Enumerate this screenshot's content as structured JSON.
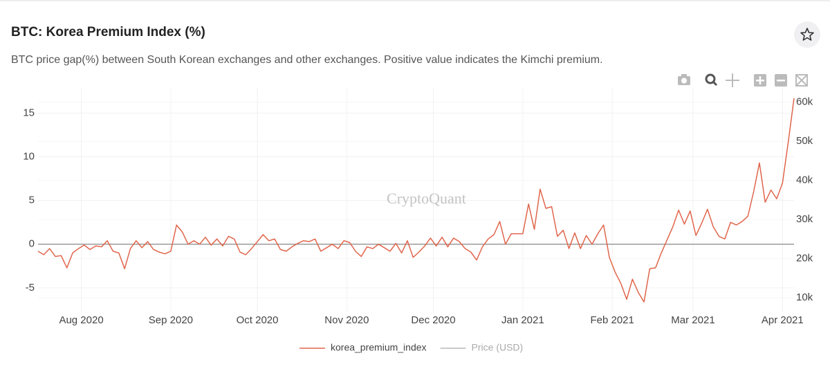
{
  "title": "BTC: Korea Premium Index (%)",
  "subtitle": "BTC price gap(%) between South Korean exchanges and other exchanges. Positive value indicates the Kimchi premium.",
  "chart_data": {
    "type": "line",
    "watermark": "CryptoQuant",
    "xlim": [
      0,
      131
    ],
    "xticks": [
      {
        "value": 7.5,
        "label": "Aug 2020"
      },
      {
        "value": 23,
        "label": "Sep 2020"
      },
      {
        "value": 38,
        "label": "Oct 2020"
      },
      {
        "value": 53.5,
        "label": "Nov 2020"
      },
      {
        "value": 68.5,
        "label": "Dec 2020"
      },
      {
        "value": 84,
        "label": "Jan 2021"
      },
      {
        "value": 99.5,
        "label": "Feb 2021"
      },
      {
        "value": 113.5,
        "label": "Mar 2021"
      },
      {
        "value": 129,
        "label": "Apr 2021"
      }
    ],
    "ylim": [
      -7.7,
      17.8
    ],
    "yticks": [
      -5,
      0,
      5,
      10,
      15
    ],
    "y2lim": [
      6450,
      63500
    ],
    "y2ticks": [
      {
        "value": 10000,
        "label": "10k"
      },
      {
        "value": 20000,
        "label": "20k"
      },
      {
        "value": 30000,
        "label": "30k"
      },
      {
        "value": 40000,
        "label": "40k"
      },
      {
        "value": 50000,
        "label": "50k"
      },
      {
        "value": 60000,
        "label": "60k"
      }
    ],
    "grid": true,
    "legend": "bottom",
    "series": [
      {
        "name": "korea_premium_index",
        "color": "#e0654b",
        "values": [
          -0.8,
          -1.2,
          -0.5,
          -1.4,
          -1.3,
          -2.7,
          -1.0,
          -0.5,
          -0.1,
          -0.6,
          -0.2,
          -0.3,
          0.4,
          -0.8,
          -1.0,
          -2.8,
          -0.5,
          0.4,
          -0.4,
          0.3,
          -0.6,
          -0.9,
          -1.1,
          -0.8,
          2.2,
          1.4,
          0.0,
          0.4,
          0.0,
          0.8,
          -0.1,
          0.6,
          -0.2,
          0.9,
          0.6,
          -0.9,
          -1.2,
          -0.5,
          0.3,
          1.1,
          0.4,
          0.6,
          -0.6,
          -0.8,
          -0.3,
          0.1,
          0.4,
          0.3,
          0.6,
          -0.8,
          -0.4,
          0.0,
          -0.5,
          0.4,
          0.2,
          -0.8,
          -1.4,
          -0.3,
          -0.5,
          0.0,
          -0.4,
          -0.8,
          0.1,
          -1.0,
          0.4,
          -1.5,
          -0.9,
          -0.2,
          0.7,
          -0.2,
          0.8,
          -0.3,
          0.7,
          0.3,
          -0.5,
          -0.9,
          -1.8,
          -0.3,
          0.6,
          1.1,
          2.6,
          0.0,
          1.2,
          1.2,
          1.2,
          4.6,
          1.7,
          6.3,
          4.1,
          4.3,
          0.9,
          1.6,
          -0.5,
          1.3,
          -0.5,
          1.0,
          0.0,
          1.2,
          2.2,
          -1.5,
          -3.2,
          -4.5,
          -6.3,
          -4.0,
          -5.5,
          -6.6,
          -2.8,
          -2.7,
          -1.0,
          0.5,
          2.0,
          3.9,
          2.3,
          3.8,
          1.0,
          2.4,
          4.0,
          2.0,
          0.9,
          0.6,
          2.5,
          2.2,
          2.6,
          3.2,
          6.0,
          9.3,
          4.8,
          6.2,
          5.2,
          7.0,
          11.7,
          16.7
        ]
      },
      {
        "name": "Price (USD)",
        "color": "#777777",
        "axis": "y2",
        "visible": false
      }
    ]
  }
}
